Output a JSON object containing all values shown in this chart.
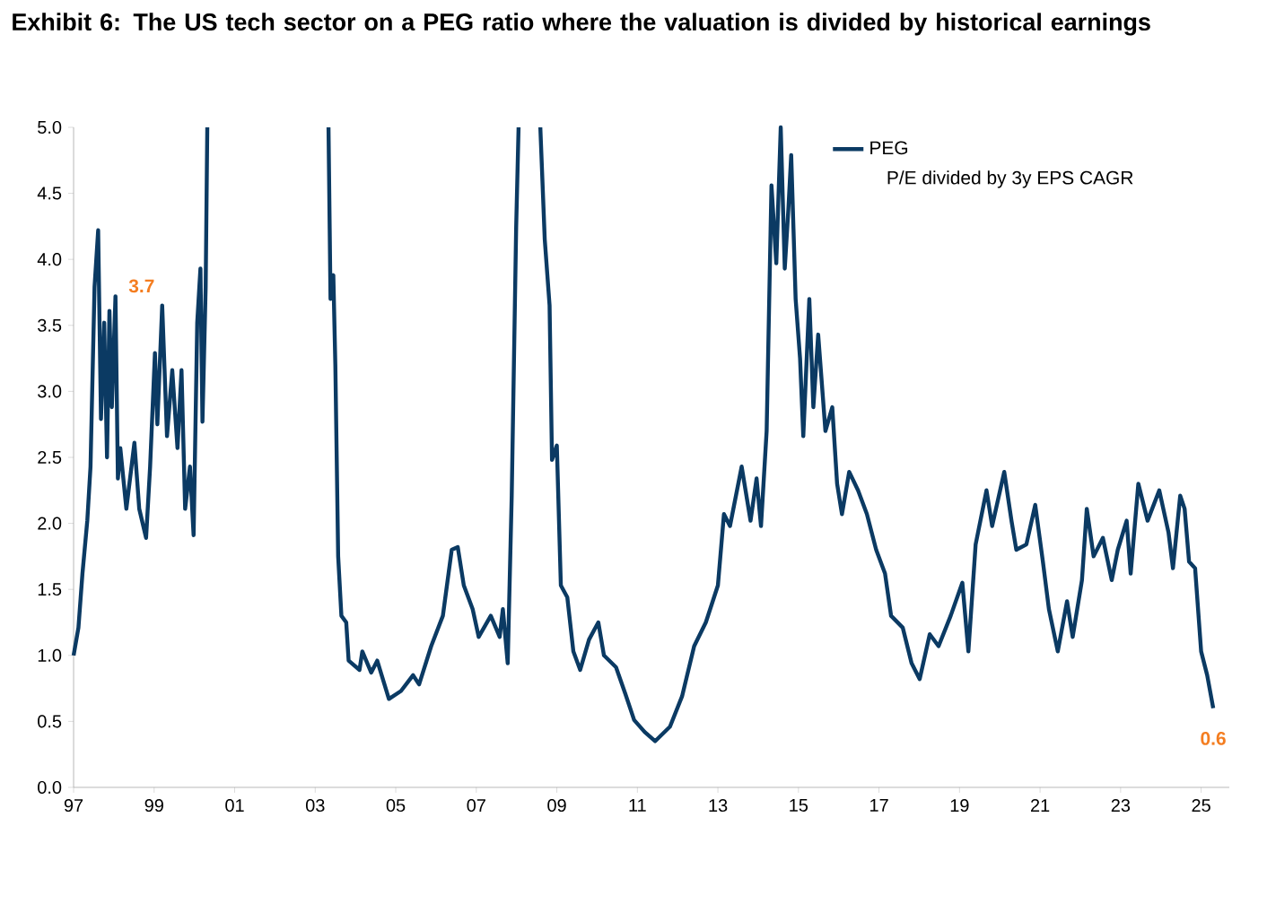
{
  "chart_data": {
    "type": "line",
    "title": "Exhibit 6: The US tech sector on a PEG ratio where the valuation is divided by historical earnings",
    "annotations": [
      "P/E divided by 3y EPS CAGR",
      {
        "text": "3.7",
        "x": 1999.2,
        "y": 3.65
      },
      {
        "text": "0.6",
        "x": 2025.3,
        "y": 0.6
      }
    ],
    "x": [
      1997.0,
      1997.12,
      1997.22,
      1997.34,
      1997.42,
      1997.52,
      1997.61,
      1997.68,
      1997.76,
      1997.83,
      1997.89,
      1997.95,
      1998.04,
      1998.1,
      1998.16,
      1998.31,
      1998.51,
      1998.63,
      1998.8,
      1998.9,
      1999.02,
      1999.08,
      1999.2,
      1999.32,
      1999.45,
      1999.58,
      1999.68,
      1999.77,
      1999.89,
      1999.98,
      2000.07,
      2000.15,
      2000.2,
      2000.28,
      2000.32,
      2001.8,
      2003.33,
      2003.38,
      2003.45,
      2003.5,
      2003.57,
      2003.65,
      2003.77,
      2003.83,
      2004.1,
      2004.17,
      2004.39,
      2004.54,
      2004.83,
      2005.13,
      2005.43,
      2005.58,
      2005.88,
      2006.17,
      2006.39,
      2006.54,
      2006.69,
      2006.91,
      2007.06,
      2007.36,
      2007.58,
      2007.66,
      2007.78,
      2007.88,
      2007.99,
      2008.05,
      2008.3,
      2008.59,
      2008.7,
      2008.82,
      2008.88,
      2009.0,
      2009.1,
      2009.26,
      2009.41,
      2009.58,
      2009.8,
      2010.03,
      2010.17,
      2010.47,
      2010.7,
      2010.92,
      2011.18,
      2011.44,
      2011.81,
      2012.11,
      2012.41,
      2012.7,
      2013.0,
      2013.15,
      2013.3,
      2013.59,
      2013.81,
      2013.96,
      2014.07,
      2014.21,
      2014.33,
      2014.45,
      2014.56,
      2014.66,
      2014.75,
      2014.82,
      2014.93,
      2015.04,
      2015.12,
      2015.27,
      2015.37,
      2015.49,
      2015.67,
      2015.84,
      2015.96,
      2016.08,
      2016.26,
      2016.48,
      2016.7,
      2016.93,
      2017.15,
      2017.3,
      2017.59,
      2017.81,
      2018.01,
      2018.26,
      2018.48,
      2018.78,
      2019.07,
      2019.22,
      2019.4,
      2019.67,
      2019.81,
      2020.11,
      2020.29,
      2020.41,
      2020.66,
      2020.88,
      2021.07,
      2021.22,
      2021.44,
      2021.67,
      2021.81,
      2022.04,
      2022.16,
      2022.33,
      2022.56,
      2022.78,
      2022.93,
      2023.15,
      2023.25,
      2023.44,
      2023.67,
      2023.96,
      2024.19,
      2024.3,
      2024.48,
      2024.59,
      2024.7,
      2024.85,
      2025.0,
      2025.15,
      2025.3
    ],
    "series": [
      {
        "name": "PEG",
        "color": "#0b3a63",
        "values": [
          1.0,
          1.21,
          1.62,
          2.02,
          2.43,
          3.79,
          4.22,
          2.79,
          3.52,
          2.5,
          3.61,
          2.88,
          3.72,
          2.34,
          2.57,
          2.11,
          2.61,
          2.11,
          1.89,
          2.43,
          3.29,
          2.75,
          3.65,
          2.66,
          3.16,
          2.57,
          3.16,
          2.11,
          2.43,
          1.91,
          3.52,
          3.93,
          2.77,
          3.79,
          5.0,
          null,
          5.0,
          3.7,
          3.88,
          3.2,
          1.75,
          1.3,
          1.25,
          0.96,
          0.89,
          1.03,
          0.87,
          0.96,
          0.67,
          0.73,
          0.85,
          0.78,
          1.07,
          1.3,
          1.8,
          1.82,
          1.53,
          1.35,
          1.14,
          1.3,
          1.14,
          1.35,
          0.94,
          2.21,
          4.24,
          5.0,
          null,
          5.0,
          4.15,
          3.65,
          2.48,
          2.59,
          1.53,
          1.44,
          1.03,
          0.89,
          1.12,
          1.25,
          1.0,
          0.91,
          0.71,
          0.51,
          0.42,
          0.35,
          0.46,
          0.69,
          1.07,
          1.25,
          1.53,
          2.07,
          1.98,
          2.43,
          2.02,
          2.34,
          1.98,
          2.7,
          4.56,
          3.97,
          5.0,
          3.93,
          4.38,
          4.79,
          3.7,
          3.25,
          2.66,
          3.7,
          2.88,
          3.43,
          2.7,
          2.88,
          2.3,
          2.07,
          2.39,
          2.25,
          2.07,
          1.8,
          1.62,
          1.3,
          1.21,
          0.94,
          0.82,
          1.16,
          1.07,
          1.3,
          1.55,
          1.03,
          1.84,
          2.25,
          1.98,
          2.39,
          2.02,
          1.8,
          1.84,
          2.14,
          1.71,
          1.35,
          1.03,
          1.41,
          1.14,
          1.57,
          2.11,
          1.75,
          1.89,
          1.57,
          1.8,
          2.02,
          1.62,
          2.3,
          2.02,
          2.25,
          1.93,
          1.66,
          2.21,
          2.11,
          1.71,
          1.66,
          1.03,
          0.85,
          0.6
        ]
      }
    ],
    "xlim": [
      1997,
      2025.7
    ],
    "xticks": [
      {
        "value": 1997,
        "label": "97"
      },
      {
        "value": 1999,
        "label": "99"
      },
      {
        "value": 2001,
        "label": "01"
      },
      {
        "value": 2003,
        "label": "03"
      },
      {
        "value": 2005,
        "label": "05"
      },
      {
        "value": 2007,
        "label": "07"
      },
      {
        "value": 2009,
        "label": "09"
      },
      {
        "value": 2011,
        "label": "11"
      },
      {
        "value": 2013,
        "label": "13"
      },
      {
        "value": 2015,
        "label": "15"
      },
      {
        "value": 2017,
        "label": "17"
      },
      {
        "value": 2019,
        "label": "19"
      },
      {
        "value": 2021,
        "label": "21"
      },
      {
        "value": 2023,
        "label": "23"
      },
      {
        "value": 2025,
        "label": "25"
      }
    ],
    "ylim": [
      0,
      5
    ],
    "yticks": [
      {
        "value": 0,
        "label": "0.0"
      },
      {
        "value": 0.5,
        "label": "0.5"
      },
      {
        "value": 1,
        "label": "1.0"
      },
      {
        "value": 1.5,
        "label": "1.5"
      },
      {
        "value": 2,
        "label": "2.0"
      },
      {
        "value": 2.5,
        "label": "2.5"
      },
      {
        "value": 3,
        "label": "3.0"
      },
      {
        "value": 3.5,
        "label": "3.5"
      },
      {
        "value": 4,
        "label": "4.0"
      },
      {
        "value": 4.5,
        "label": "4.5"
      },
      {
        "value": 5,
        "label": "5.0"
      }
    ],
    "legend": "top right",
    "marker": "none",
    "line_style": "solid"
  }
}
